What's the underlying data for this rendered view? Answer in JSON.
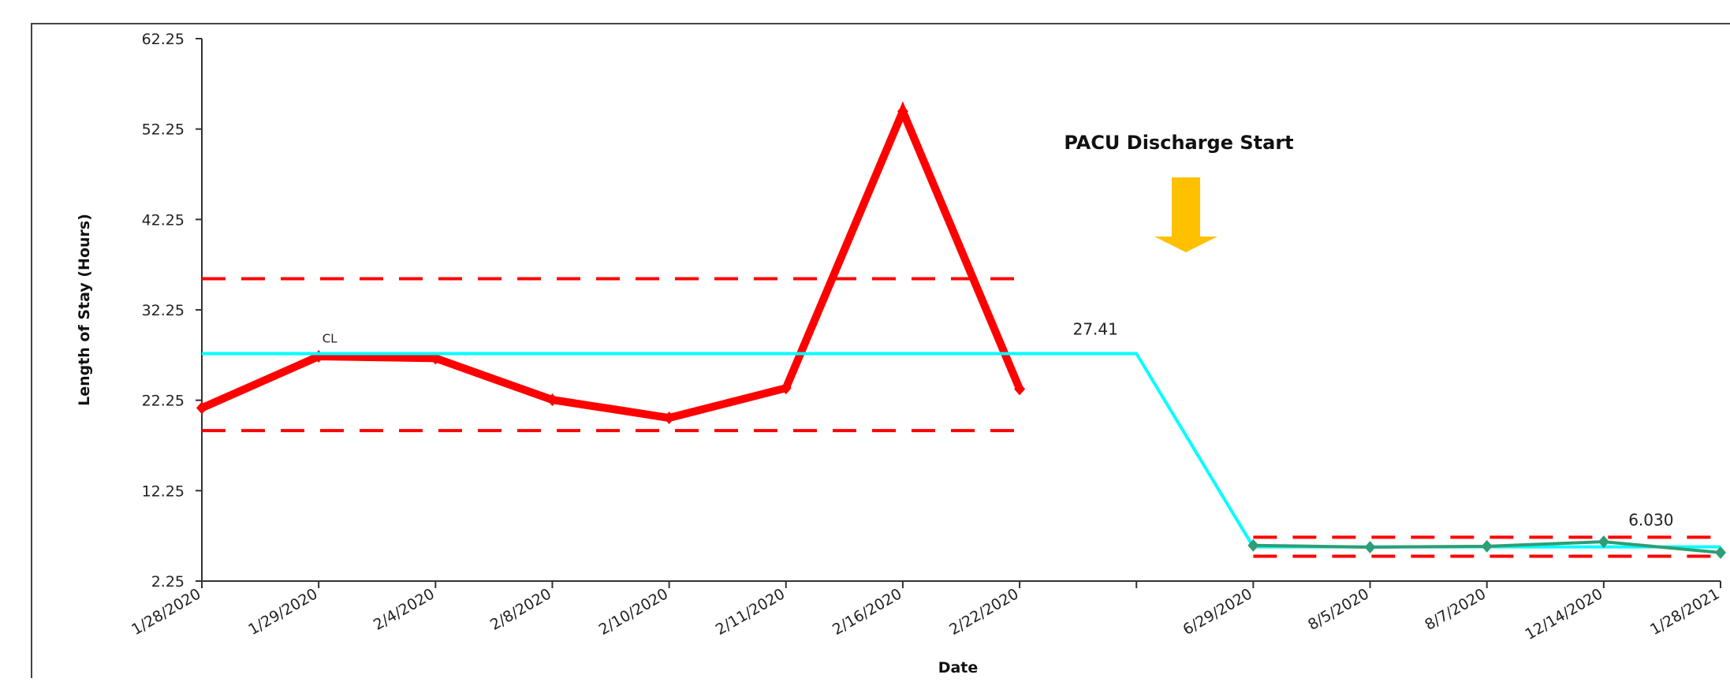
{
  "chart_data": {
    "type": "line",
    "title": "",
    "xlabel": "Date",
    "ylabel": "Length of Stay (Hours)",
    "ylim": [
      2.25,
      62.25
    ],
    "yticks": [
      "2.25",
      "12.25",
      "22.25",
      "32.25",
      "42.25",
      "52.25",
      "62.25"
    ],
    "categories": [
      "1/28/2020",
      "1/29/2020",
      "2/4/2020",
      "2/8/2020",
      "2/10/2020",
      "2/11/2020",
      "2/16/2020",
      "2/22/2020",
      "",
      "6/29/2020",
      "8/5/2020",
      "8/7/2020",
      "12/14/2020",
      "1/28/2021"
    ],
    "series": [
      {
        "name": "",
        "color": "#ff0000",
        "values": [
          21.4,
          27.1,
          26.9,
          22.3,
          20.3,
          23.6,
          54.2,
          23.5,
          null,
          null,
          null,
          null,
          null,
          null
        ]
      },
      {
        "name": "",
        "color": "#00ffff",
        "values": [
          27.41,
          27.41,
          27.41,
          27.41,
          27.41,
          27.41,
          27.41,
          27.41,
          27.41,
          6.03,
          6.03,
          6.03,
          6.03,
          6.03
        ]
      },
      {
        "name": "",
        "color": "#2e9e76",
        "values": [
          null,
          null,
          null,
          null,
          null,
          null,
          null,
          null,
          null,
          6.2,
          6.0,
          6.1,
          6.6,
          5.4
        ]
      }
    ],
    "control_limits": [
      {
        "from": 0,
        "to": 7,
        "ucl": 35.7,
        "lcl": 18.9,
        "color": "#ff0000"
      },
      {
        "from": 9,
        "to": 13,
        "ucl": 7.1,
        "lcl": 5.0,
        "color": "#ff0000"
      }
    ],
    "annotations": {
      "cl_label": "CL",
      "cl_value_1": "27.41",
      "cl_value_2": "6.030",
      "phase_label": "PACU Discharge Start",
      "arrow_color": "#ffc000"
    },
    "grid": false
  }
}
